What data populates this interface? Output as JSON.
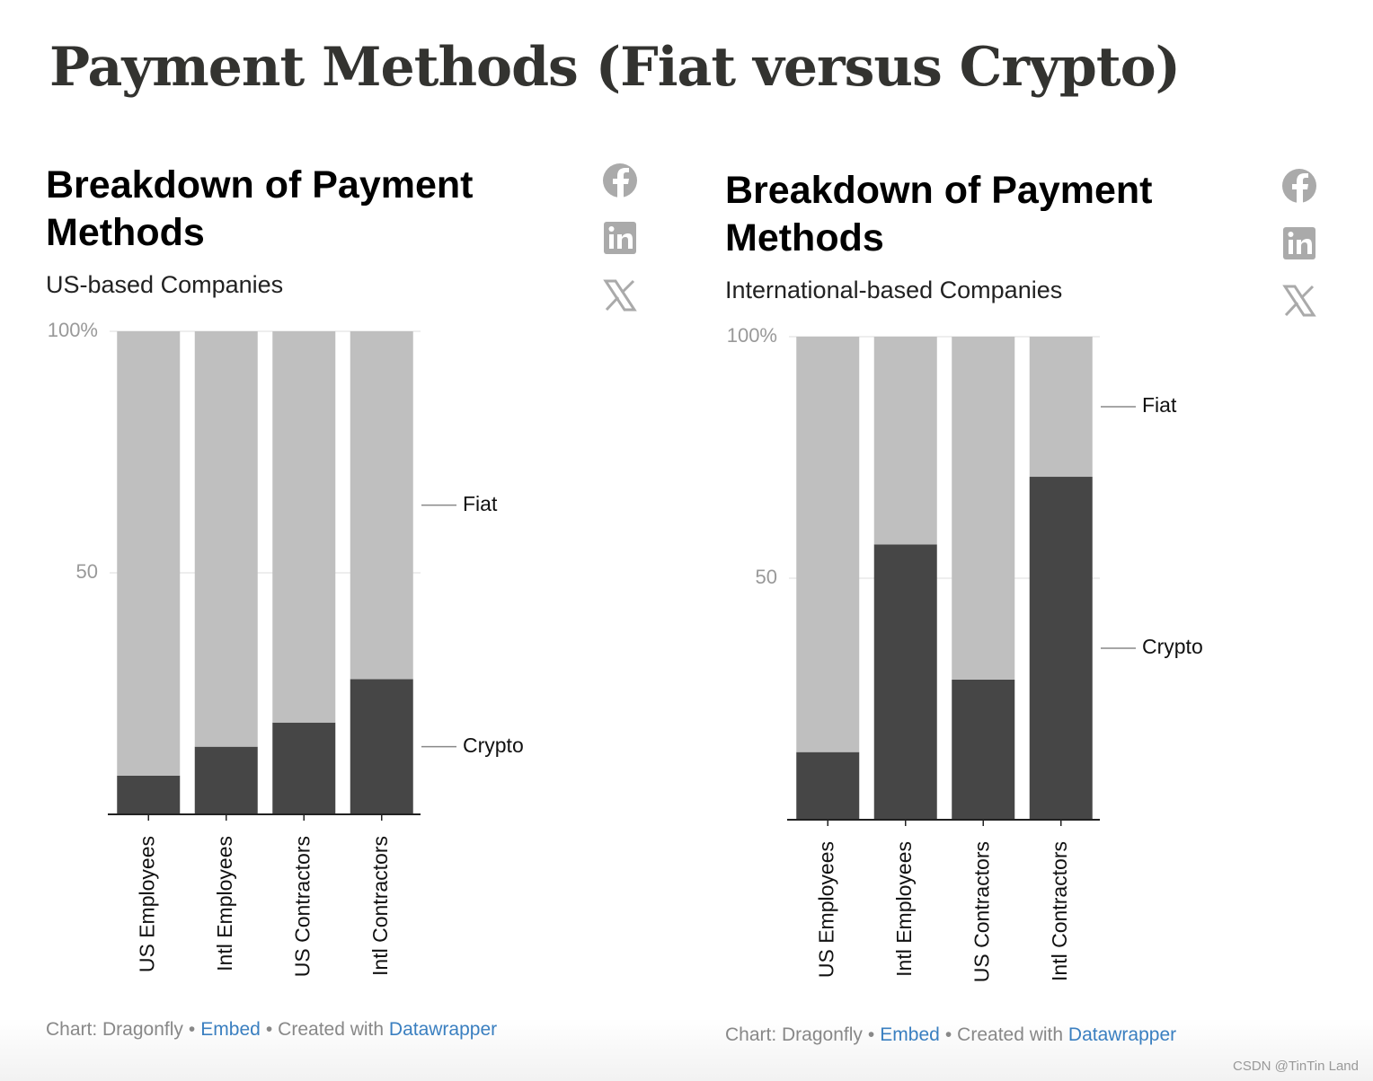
{
  "title": "Payment Methods (Fiat versus Crypto)",
  "watermark": "CSDN @TinTin Land",
  "chart_data": [
    {
      "type": "bar",
      "stacked": true,
      "title": "Breakdown of Payment Methods",
      "subtitle": "US-based Companies",
      "categories": [
        "US Employees",
        "Intl Employees",
        "US Contractors",
        "Intl Contractors"
      ],
      "series": [
        {
          "name": "Crypto",
          "color": "#464646",
          "values": [
            8,
            14,
            19,
            28
          ]
        },
        {
          "name": "Fiat",
          "color": "#bfbfbf",
          "values": [
            92,
            86,
            81,
            72
          ]
        }
      ],
      "ylim": [
        0,
        100
      ],
      "yticks": [
        50,
        {
          "value": 100,
          "label": "100%"
        }
      ],
      "grid": true,
      "footer": {
        "source": "Chart: Dragonfly",
        "separator": "•",
        "embed": "Embed",
        "created": "Created with",
        "credit": "Datawrapper"
      }
    },
    {
      "type": "bar",
      "stacked": true,
      "title": "Breakdown of Payment Methods",
      "subtitle": "International-based Companies",
      "categories": [
        "US Employees",
        "Intl Employees",
        "US Contractors",
        "Intl Contractors"
      ],
      "series": [
        {
          "name": "Crypto",
          "color": "#464646",
          "values": [
            14,
            57,
            29,
            71
          ]
        },
        {
          "name": "Fiat",
          "color": "#bfbfbf",
          "values": [
            86,
            43,
            71,
            29
          ]
        }
      ],
      "ylim": [
        0,
        100
      ],
      "yticks": [
        50,
        {
          "value": 100,
          "label": "100%"
        }
      ],
      "grid": true,
      "footer": {
        "source": "Chart: Dragonfly",
        "separator": "•",
        "embed": "Embed",
        "created": "Created with",
        "credit": "Datawrapper"
      }
    }
  ]
}
